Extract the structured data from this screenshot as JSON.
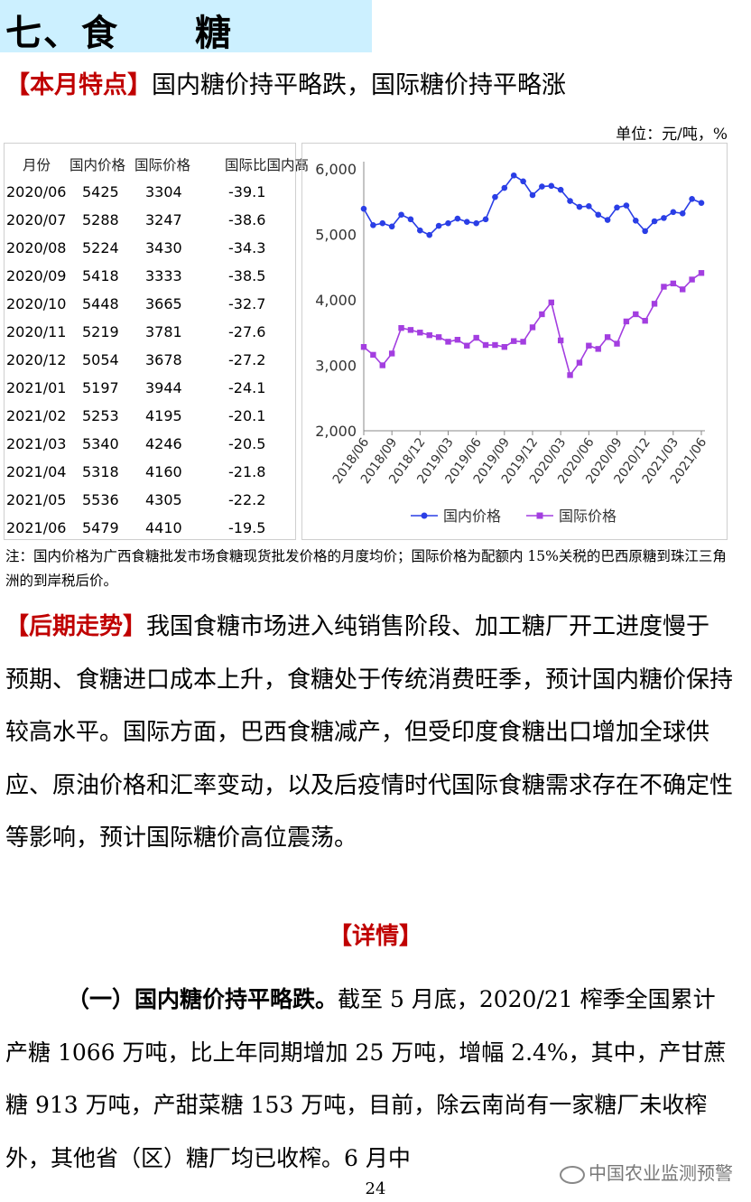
{
  "title": "七、食　　糖",
  "feature": {
    "tag": "【本月特点】",
    "text": "国内糖价持平略跌，国际糖价持平略涨"
  },
  "unit": "单位：元/吨，%",
  "table": {
    "headers": [
      "月份",
      "国内价格",
      "国际价格",
      "国际比国内高"
    ],
    "rows": [
      [
        "2020/06",
        "5425",
        "3304",
        "-39.1"
      ],
      [
        "2020/07",
        "5288",
        "3247",
        "-38.6"
      ],
      [
        "2020/08",
        "5224",
        "3430",
        "-34.3"
      ],
      [
        "2020/09",
        "5418",
        "3333",
        "-38.5"
      ],
      [
        "2020/10",
        "5448",
        "3665",
        "-32.7"
      ],
      [
        "2020/11",
        "5219",
        "3781",
        "-27.6"
      ],
      [
        "2020/12",
        "5054",
        "3678",
        "-27.2"
      ],
      [
        "2021/01",
        "5197",
        "3944",
        "-24.1"
      ],
      [
        "2021/02",
        "5253",
        "4195",
        "-20.1"
      ],
      [
        "2021/03",
        "5340",
        "4246",
        "-20.5"
      ],
      [
        "2021/04",
        "5318",
        "4160",
        "-21.8"
      ],
      [
        "2021/05",
        "5536",
        "4305",
        "-22.2"
      ],
      [
        "2021/06",
        "5479",
        "4410",
        "-19.5"
      ]
    ]
  },
  "chart_data": {
    "type": "line",
    "x_ticks": [
      "2018/06",
      "2018/09",
      "2018/12",
      "2019/03",
      "2019/06",
      "2019/09",
      "2019/12",
      "2020/03",
      "2020/06",
      "2020/09",
      "2020/12",
      "2021/03",
      "2021/06"
    ],
    "ylim": [
      2000,
      6000
    ],
    "y_ticks": [
      "2,000",
      "3,000",
      "4,000",
      "5,000",
      "6,000"
    ],
    "grid": false,
    "legend_position": "bottom",
    "series": [
      {
        "name": "国内价格",
        "color": "#2a3ee6",
        "marker": "circle",
        "values": [
          5390,
          5140,
          5170,
          5120,
          5300,
          5230,
          5060,
          4990,
          5130,
          5170,
          5240,
          5190,
          5170,
          5230,
          5570,
          5710,
          5900,
          5810,
          5600,
          5730,
          5740,
          5680,
          5510,
          5420,
          5430,
          5300,
          5220,
          5410,
          5440,
          5210,
          5050,
          5200,
          5250,
          5340,
          5320,
          5540,
          5480
        ]
      },
      {
        "name": "国际价格",
        "color": "#a33ee0",
        "marker": "square",
        "values": [
          3280,
          3160,
          3000,
          3180,
          3570,
          3540,
          3500,
          3460,
          3430,
          3360,
          3390,
          3300,
          3420,
          3310,
          3310,
          3280,
          3370,
          3360,
          3580,
          3780,
          3960,
          3380,
          2850,
          3040,
          3300,
          3250,
          3430,
          3330,
          3670,
          3780,
          3680,
          3940,
          4200,
          4250,
          4160,
          4310,
          4410
        ]
      }
    ]
  },
  "note": "注：国内价格为广西食糖批发市场食糖现货批发价格的月度均价；国际价格为配额内 15%关税的巴西原糖到珠江三角洲的到岸税后价。",
  "outlook": {
    "tag": "【后期走势】",
    "text": "我国食糖市场进入纯销售阶段、加工糖厂开工进度慢于预期、食糖进口成本上升，食糖处于传统消费旺季，预计国内糖价保持较高水平。国际方面，巴西食糖减产，但受印度食糖出口增加全球供应、原油价格和汇率变动，以及后疫情时代国际食糖需求存在不确定性等影响，预计国际糖价高位震荡。"
  },
  "details_heading": "【详情】",
  "body": {
    "bold": "（一）国内糖价持平略跌。",
    "text": "截至 5 月底，2020/21 榨季全国累计产糖 1066 万吨，比上年同期增加 25 万吨，增幅 2.4%，其中，产甘蔗糖 913 万吨，产甜菜糖 153 万吨，目前，除云南尚有一家糖厂未收榨外，其他省（区）糖厂均已收榨。6 月中"
  },
  "page_number": "24",
  "watermark": "中国农业监测预警"
}
